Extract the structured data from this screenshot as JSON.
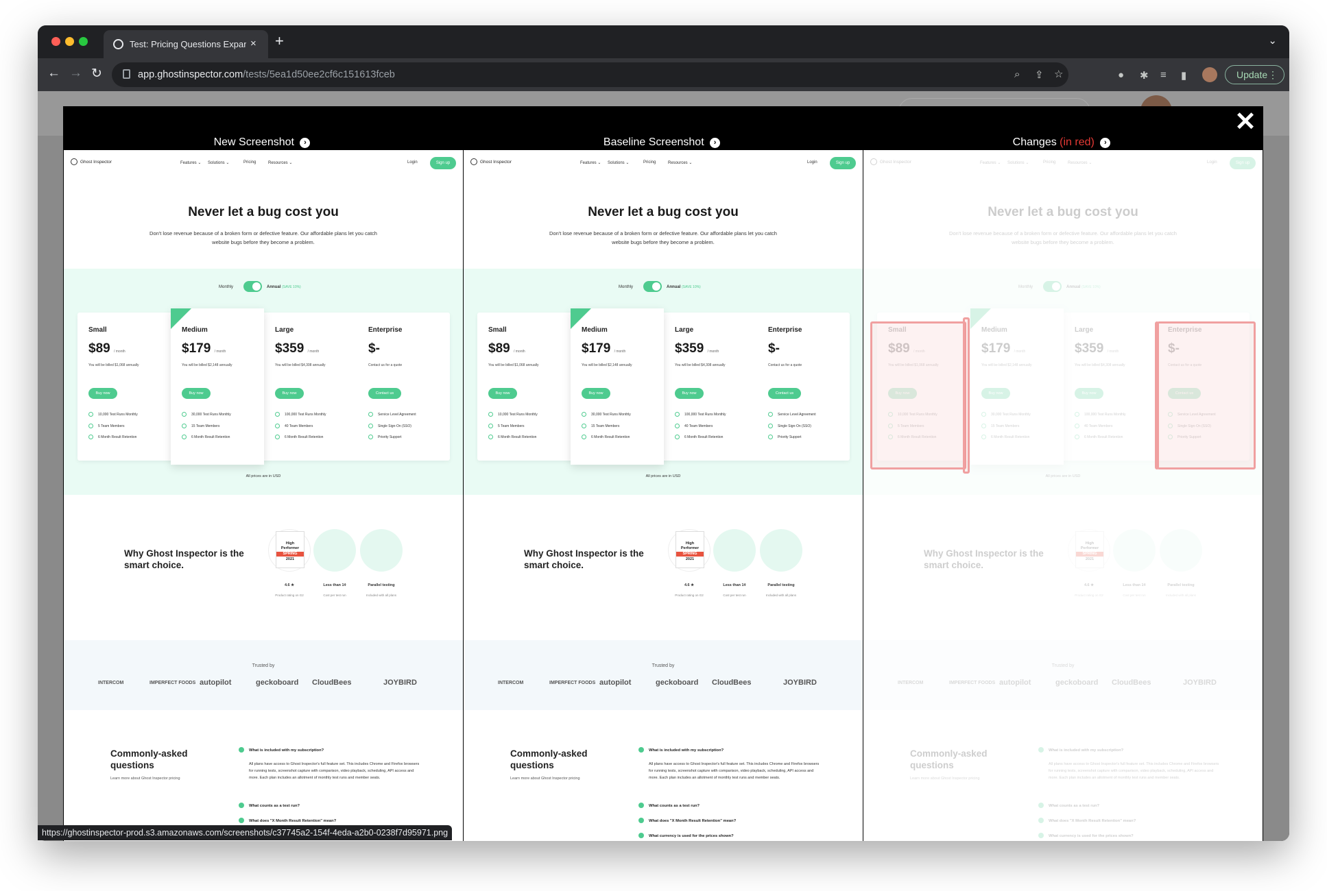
{
  "browser": {
    "tab_title": "Test: Pricing Questions Expand",
    "tab_close": "×",
    "new_tab": "+",
    "url_host": "app.ghostinspector.com",
    "url_path": "/tests/5ea1d50ee2cf6c151613fceb",
    "update_label": "Update",
    "status_url": "https://ghostinspector-prod.s3.amazonaws.com/screenshots/c37745a2-154f-4eda-a2b0-0238f7d95971.png"
  },
  "modal": {
    "close": "✕",
    "col_new": "New Screenshot",
    "col_baseline": "Baseline Screenshot",
    "col_changes": "Changes",
    "col_changes_note": "(in red)"
  },
  "page": {
    "logo": "Ghost Inspector",
    "menu": [
      "Features ⌄",
      "Solutions ⌄",
      "Pricing",
      "Resources ⌄"
    ],
    "login": "Login",
    "signup": "Sign up",
    "headline": "Never let a bug cost you",
    "subhead": "Don't lose revenue because of a broken form or defective feature. Our affordable plans let you catch website bugs before they become a problem.",
    "toggle_monthly": "Monthly",
    "toggle_annual": "Annual",
    "toggle_save": "(SAVE 10%)",
    "plans": [
      {
        "name": "Small",
        "price": "$89",
        "per": "/ month",
        "billed": "You will be billed $1,068 annually",
        "button": "Buy now",
        "features": [
          "10,000 Test Runs Monthly",
          "5 Team Members",
          "6 Month Result Retention"
        ]
      },
      {
        "name": "Medium",
        "price": "$179",
        "per": "/ month",
        "billed": "You will be billed $2,148 annually",
        "button": "Buy now",
        "features": [
          "30,000 Test Runs Monthly",
          "15 Team Members",
          "6 Month Result Retention"
        ]
      },
      {
        "name": "Large",
        "price": "$359",
        "per": "/ month",
        "billed": "You will be billed $4,308 annually",
        "button": "Buy now",
        "features": [
          "100,000 Test Runs Monthly",
          "40 Team Members",
          "6 Month Result Retention"
        ]
      },
      {
        "name": "Enterprise",
        "price": "$-",
        "per": "",
        "billed": "Contact us for a quote",
        "button": "Contact us",
        "features": [
          "Service Level Agreement",
          "Single Sign-On (SSO)",
          "Priority Support"
        ]
      }
    ],
    "usd_note": "All prices are in USD",
    "why_title": "Why Ghost Inspector is the smart choice.",
    "g2_badge": [
      "High",
      "Performer",
      "SPRING",
      "2021"
    ],
    "badges": [
      {
        "title": "4.6 ★",
        "sub": "Product rating on G2"
      },
      {
        "title": "Less than 1¢",
        "sub": "Cost per test run"
      },
      {
        "title": "Parallel testing",
        "sub": "Included with all plans"
      }
    ],
    "trusted_by": "Trusted by",
    "logos": [
      "INTERCOM",
      "IMPERFECT FOODS",
      "autopilot",
      "geckoboard",
      "CloudBees",
      "JOYBIRD"
    ],
    "faq_title": "Commonly-asked questions",
    "faq_sub": "Learn more about Ghost Inspector pricing",
    "faq_q1": "What is included with my subscription?",
    "faq_a1": "All plans have access to Ghost Inspector's full feature set. This includes Chrome and Firefox browsers for running tests, screenshot capture with comparison, video playback, scheduling, API access and more. Each plan includes an allotment of monthly test runs and member seats.",
    "faq_q2": "What counts as a test run?",
    "faq_q3": "What does \"X Month Result Retention\" mean?",
    "faq_q4": "What currency is used for the prices shown?"
  },
  "colors": {
    "accent": "#4ecb8f",
    "diff_red": "#e35c5c"
  }
}
